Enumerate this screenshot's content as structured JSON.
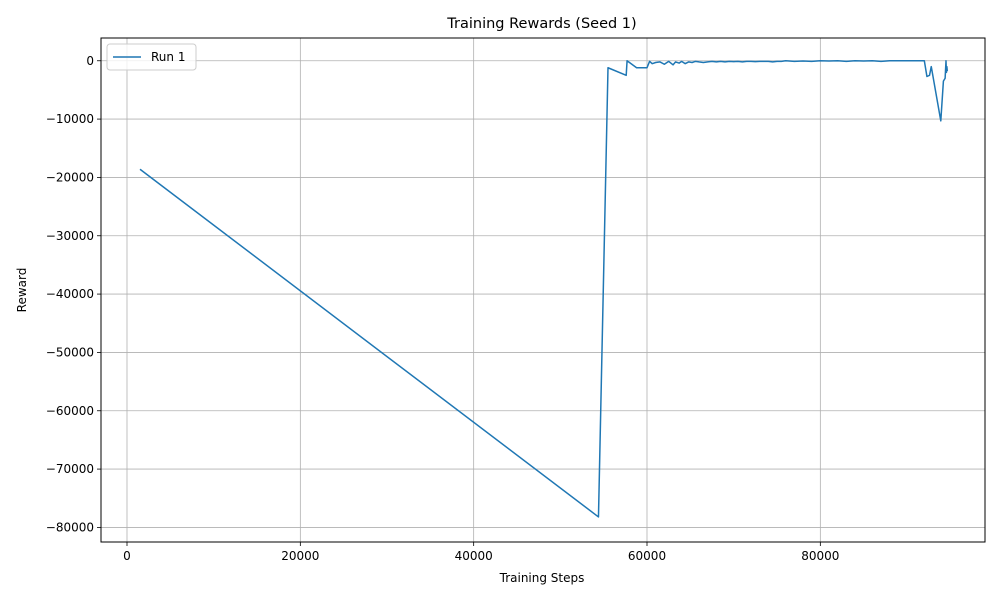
{
  "chart_data": {
    "type": "line",
    "title": "Training Rewards (Seed 1)",
    "xlabel": "Training Steps",
    "ylabel": "Reward",
    "xlim": [
      -3000,
      99000
    ],
    "ylim": [
      -82500,
      3900
    ],
    "xticks": [
      0,
      20000,
      40000,
      60000,
      80000
    ],
    "yticks": [
      0,
      -10000,
      -20000,
      -30000,
      -40000,
      -50000,
      -60000,
      -70000,
      -80000
    ],
    "grid": true,
    "legend": "top-left",
    "series": [
      {
        "name": "Run 1",
        "color": "#1f77b4",
        "x": [
          1500,
          54400,
          55500,
          57600,
          57700,
          58800,
          60000,
          60300,
          60600,
          61000,
          61500,
          62000,
          62500,
          63000,
          63300,
          63700,
          64000,
          64400,
          64800,
          65200,
          65600,
          66000,
          66500,
          67000,
          67500,
          68000,
          68500,
          69000,
          69500,
          70000,
          70500,
          71000,
          71500,
          72000,
          72500,
          73000,
          73500,
          74000,
          74500,
          75000,
          75500,
          76000,
          77000,
          78000,
          79000,
          80000,
          81000,
          82000,
          83000,
          84000,
          85000,
          86000,
          87000,
          88000,
          89000,
          90000,
          91000,
          92000,
          92300,
          92600,
          92800,
          93900,
          94200,
          94400,
          94500,
          94550,
          94600,
          94650
        ],
        "y": [
          -18600,
          -78200,
          -1200,
          -2500,
          0,
          -1200,
          -1200,
          -100,
          -500,
          -300,
          -200,
          -600,
          -100,
          -700,
          -200,
          -400,
          -100,
          -500,
          -200,
          -300,
          -100,
          -200,
          -300,
          -200,
          -100,
          -200,
          -100,
          -200,
          -100,
          -150,
          -100,
          -200,
          -100,
          -100,
          -150,
          -100,
          -100,
          -100,
          -200,
          -100,
          -100,
          0,
          -100,
          -50,
          -100,
          0,
          -50,
          0,
          -100,
          0,
          -50,
          0,
          -100,
          0,
          0,
          0,
          0,
          0,
          -2700,
          -2500,
          -1000,
          -10300,
          -3500,
          -3000,
          0,
          -2000,
          -1000,
          -1800
        ]
      }
    ]
  }
}
